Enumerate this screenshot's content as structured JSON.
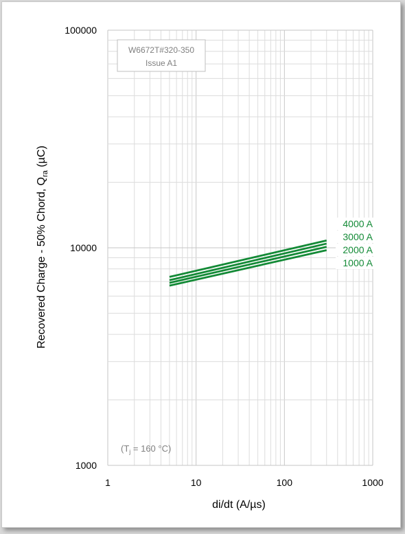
{
  "chart_data": {
    "type": "line",
    "xlabel": "di/dt (A/µs)",
    "ylabel": "Recovered Charge - 50% Chord, Q",
    "ylabel_sub": "ra",
    "ylabel_unit": " (µC)",
    "x_scale": "log",
    "y_scale": "log",
    "xlim": [
      1,
      1000
    ],
    "ylim": [
      1000,
      100000
    ],
    "x_ticks": [
      "1",
      "10",
      "100",
      "1000"
    ],
    "y_ticks": [
      "1000",
      "10000",
      "100000"
    ],
    "grid": true,
    "series_color": "#138a36",
    "series": [
      {
        "name": "4000 A",
        "x": [
          5,
          300
        ],
        "y": [
          7350,
          10800
        ]
      },
      {
        "name": "3000 A",
        "x": [
          5,
          300
        ],
        "y": [
          7100,
          10450
        ]
      },
      {
        "name": "2000 A",
        "x": [
          5,
          300
        ],
        "y": [
          6900,
          10100
        ]
      },
      {
        "name": "1000 A",
        "x": [
          5,
          300
        ],
        "y": [
          6700,
          9750
        ]
      }
    ],
    "id_box": {
      "line1": "W6672T#320-350",
      "line2": "Issue A1"
    },
    "annotation": {
      "prefix": "(T",
      "sub": "j",
      "suffix": " = 160 °C)"
    }
  }
}
